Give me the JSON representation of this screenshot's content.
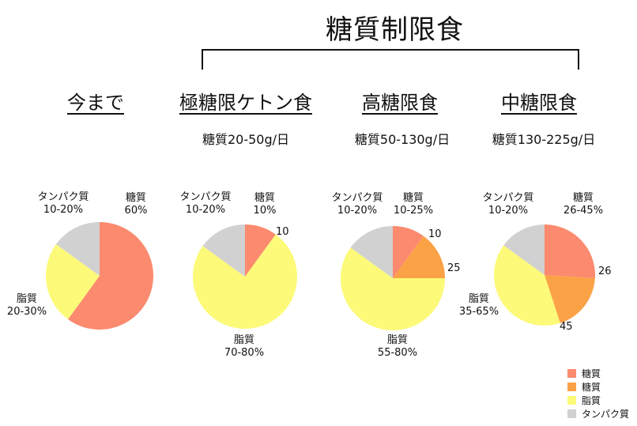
{
  "title": "糖質制限食",
  "colors": {
    "carb_low": "#fb8a6e",
    "carb_high": "#fba247",
    "fat": "#fcfa78",
    "protein": "#d1d1d1"
  },
  "columns": [
    {
      "heading": "今まで",
      "subtitle": "",
      "carb_label": "糖質",
      "carb_range": "60%",
      "protein_label": "タンパク質",
      "protein_range": "10-20%",
      "fat_label": "脂質",
      "fat_range": "20-30%",
      "mark_a": "",
      "mark_b": ""
    },
    {
      "heading": "極糖限ケトン食",
      "subtitle": "糖質20-50g/日",
      "carb_label": "糖質",
      "carb_range": "10%",
      "protein_label": "タンパク質",
      "protein_range": "10-20%",
      "fat_label": "脂質",
      "fat_range": "70-80%",
      "mark_a": "10",
      "mark_b": ""
    },
    {
      "heading": "高糖限食",
      "subtitle": "糖質50-130g/日",
      "carb_label": "糖質",
      "carb_range": "10-25%",
      "protein_label": "タンパク質",
      "protein_range": "10-20%",
      "fat_label": "脂質",
      "fat_range": "55-80%",
      "mark_a": "10",
      "mark_b": "25"
    },
    {
      "heading": "中糖限食",
      "subtitle": "糖質130-225g/日",
      "carb_label": "糖質",
      "carb_range": "26-45%",
      "protein_label": "タンパク質",
      "protein_range": "10-20%",
      "fat_label": "脂質",
      "fat_range": "35-65%",
      "mark_a": "26",
      "mark_b": "45"
    }
  ],
  "legend": [
    {
      "label": "糖質",
      "color": "#fb8a6e"
    },
    {
      "label": "糖質",
      "color": "#fba247"
    },
    {
      "label": "脂質",
      "color": "#fcfa78"
    },
    {
      "label": "タンパク質",
      "color": "#d1d1d1"
    }
  ],
  "chart_data": [
    {
      "type": "pie",
      "title": "今まで",
      "slices": [
        {
          "name": "糖質",
          "value": 60,
          "color_key": "carb_low"
        },
        {
          "name": "脂質",
          "value": 25,
          "color_key": "fat"
        },
        {
          "name": "タンパク質",
          "value": 15,
          "color_key": "protein"
        }
      ]
    },
    {
      "type": "pie",
      "title": "極糖限ケトン食",
      "slices": [
        {
          "name": "糖質",
          "value": 10,
          "color_key": "carb_low"
        },
        {
          "name": "脂質",
          "value": 75,
          "color_key": "fat"
        },
        {
          "name": "タンパク質",
          "value": 15,
          "color_key": "protein"
        }
      ]
    },
    {
      "type": "pie",
      "title": "高糖限食",
      "slices": [
        {
          "name": "糖質",
          "value": 10,
          "color_key": "carb_low"
        },
        {
          "name": "糖質",
          "value": 15,
          "color_key": "carb_high"
        },
        {
          "name": "脂質",
          "value": 60,
          "color_key": "fat"
        },
        {
          "name": "タンパク質",
          "value": 15,
          "color_key": "protein"
        }
      ]
    },
    {
      "type": "pie",
      "title": "中糖限食",
      "slices": [
        {
          "name": "糖質",
          "value": 26,
          "color_key": "carb_low"
        },
        {
          "name": "糖質",
          "value": 19,
          "color_key": "carb_high"
        },
        {
          "name": "脂質",
          "value": 40,
          "color_key": "fat"
        },
        {
          "name": "タンパク質",
          "value": 15,
          "color_key": "protein"
        }
      ]
    }
  ]
}
